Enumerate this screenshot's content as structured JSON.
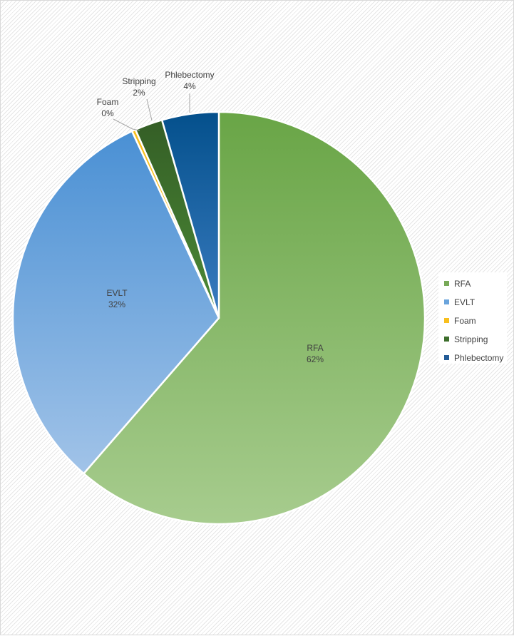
{
  "chart_data": {
    "type": "pie",
    "title": "",
    "legend_position": "right",
    "start_angle_deg": 0,
    "direction": "clockwise",
    "slices": [
      {
        "label": "RFA",
        "value": 62,
        "percent_label": "62%",
        "color": "#78aa58",
        "color_light": "#a7cc8e",
        "color_dark": "#69a546"
      },
      {
        "label": "EVLT",
        "value": 32,
        "percent_label": "32%",
        "color": "#6aa4dc",
        "color_light": "#a1c3e8",
        "color_dark": "#4a90d4"
      },
      {
        "label": "Foam",
        "value": 0.3,
        "percent_label": "0%",
        "color": "#f8bf1e",
        "color_light": "#f8bf1e",
        "color_dark": "#f8bf1e"
      },
      {
        "label": "Stripping",
        "value": 2.2,
        "percent_label": "2%",
        "color": "#3d6e2c",
        "color_light": "#4c8a36",
        "color_dark": "#345e26"
      },
      {
        "label": "Phlebectomy",
        "value": 4.5,
        "percent_label": "4%",
        "color": "#245c97",
        "color_light": "#3a7cc0",
        "color_dark": "#04508c"
      }
    ]
  }
}
